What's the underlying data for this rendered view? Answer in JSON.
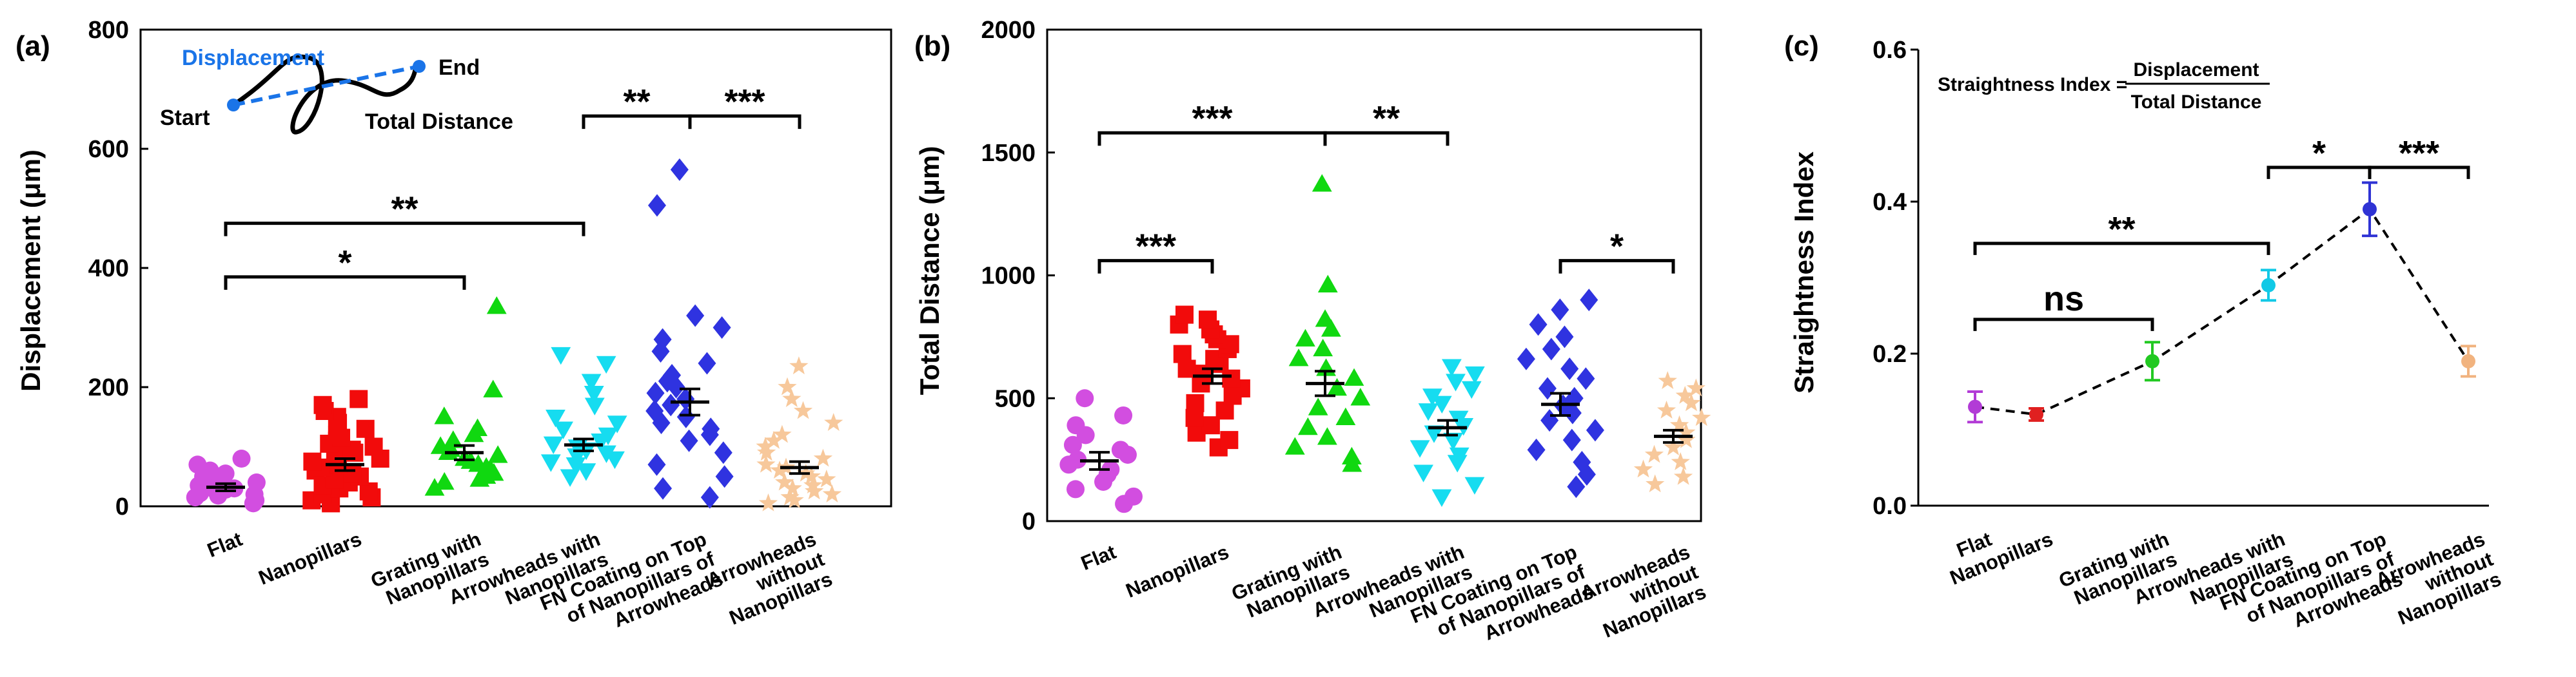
{
  "colors": {
    "Flat": "#d24ee0",
    "Nanopillars": "#f20b0b",
    "Grating with Nanopillars": "#10d810",
    "Arrowheads with Nanopillars": "#16dcf0",
    "FN Coating on Top of Nanopillars of Arrowheads": "#2f33e0",
    "Arrowheads without Nanopillars": "#f7c89b",
    "c_Flat": "#b23bd6",
    "c_Nanopillars": "#e02020",
    "c_Grating with Nanopillars": "#22c922",
    "c_Arrowheads with Nanopillars": "#11c9e6",
    "c_FN Coating on Top of Nanopillars of Arrowheads": "#2f33d4",
    "c_Arrowheads without Nanopillars": "#f1b37f",
    "displacement_line": "#1a74e8"
  },
  "chart_data": [
    {
      "panel": "(a)",
      "type": "scatter",
      "ylabel": "Displacement (μm)",
      "ylim": [
        0,
        800
      ],
      "yticks": [
        0,
        200,
        400,
        600,
        800
      ],
      "categories": [
        {
          "label_lines": [
            "Flat"
          ],
          "marker": "circle",
          "mean": 32,
          "sem": 6,
          "points": [
            5,
            10,
            15,
            18,
            20,
            22,
            25,
            28,
            30,
            32,
            35,
            40,
            45,
            50,
            55,
            60,
            70,
            80
          ]
        },
        {
          "label_lines": [
            "Nanopillars"
          ],
          "marker": "square",
          "mean": 70,
          "sem": 10,
          "points": [
            5,
            8,
            10,
            15,
            20,
            25,
            30,
            35,
            40,
            45,
            50,
            55,
            60,
            65,
            70,
            75,
            80,
            85,
            90,
            95,
            100,
            105,
            110,
            115,
            120,
            130,
            140,
            150,
            160,
            170,
            180
          ]
        },
        {
          "label_lines": [
            "Grating with",
            "Nanopillars"
          ],
          "marker": "triangle-up",
          "mean": 90,
          "sem": 12,
          "points": [
            30,
            40,
            45,
            50,
            55,
            60,
            65,
            70,
            75,
            80,
            85,
            90,
            95,
            100,
            110,
            120,
            130,
            150,
            195,
            335
          ]
        },
        {
          "label_lines": [
            "Arrowheads with",
            "Nanopillars"
          ],
          "marker": "triangle-down",
          "mean": 103,
          "sem": 10,
          "points": [
            50,
            60,
            70,
            75,
            80,
            85,
            90,
            95,
            100,
            105,
            110,
            120,
            130,
            140,
            150,
            170,
            190,
            210,
            240,
            255
          ]
        },
        {
          "label_lines": [
            "FN Coating on Top",
            "of Nanopillars of",
            "Arrowheads"
          ],
          "marker": "diamond",
          "mean": 175,
          "sem": 22,
          "points": [
            15,
            30,
            50,
            70,
            90,
            110,
            120,
            130,
            140,
            150,
            160,
            170,
            180,
            190,
            200,
            210,
            220,
            240,
            260,
            280,
            300,
            320,
            505,
            565
          ]
        },
        {
          "label_lines": [
            "Arrowheads",
            "without",
            "Nanopillars"
          ],
          "marker": "star",
          "mean": 65,
          "sem": 10,
          "points": [
            5,
            10,
            15,
            20,
            25,
            30,
            35,
            40,
            45,
            50,
            55,
            60,
            65,
            70,
            80,
            90,
            100,
            110,
            120,
            140,
            160,
            180,
            200,
            235
          ]
        }
      ],
      "sig_brackets": [
        {
          "from": 0,
          "to": 2,
          "y": 385,
          "label": "*"
        },
        {
          "from": 0,
          "to": 3,
          "y": 475,
          "label": "**"
        },
        {
          "from": 3,
          "to": 4,
          "y": 655,
          "label": "**"
        },
        {
          "from": 4,
          "to": 5,
          "y": 655,
          "label": "***"
        }
      ],
      "inset": {
        "start": "Start",
        "end": "End",
        "displacement": "Displacement",
        "total": "Total Distance"
      }
    },
    {
      "panel": "(b)",
      "type": "scatter",
      "ylabel": "Total Distance (μm)",
      "ylim": [
        0,
        2000
      ],
      "yticks": [
        0,
        500,
        1000,
        1500,
        2000
      ],
      "categories": [
        {
          "label_lines": [
            "Flat"
          ],
          "marker": "circle",
          "mean": 245,
          "sem": 35,
          "points": [
            70,
            100,
            130,
            160,
            190,
            210,
            230,
            250,
            270,
            290,
            310,
            350,
            390,
            430,
            500
          ]
        },
        {
          "label_lines": [
            "Nanopillars"
          ],
          "marker": "square",
          "mean": 590,
          "sem": 30,
          "points": [
            300,
            330,
            360,
            390,
            420,
            450,
            480,
            510,
            540,
            560,
            580,
            600,
            620,
            640,
            660,
            680,
            700,
            720,
            740,
            760,
            780,
            800,
            820,
            840
          ]
        },
        {
          "label_lines": [
            "Grating with",
            "Nanopillars"
          ],
          "marker": "triangle-up",
          "mean": 560,
          "sem": 50,
          "points": [
            230,
            260,
            300,
            340,
            380,
            420,
            460,
            500,
            540,
            580,
            620,
            660,
            700,
            740,
            780,
            820,
            960,
            1370
          ]
        },
        {
          "label_lines": [
            "Arrowheads with",
            "Nanopillars"
          ],
          "marker": "triangle-down",
          "mean": 380,
          "sem": 30,
          "points": [
            100,
            150,
            200,
            240,
            270,
            300,
            330,
            360,
            390,
            420,
            450,
            480,
            510,
            540,
            570,
            600,
            630
          ]
        },
        {
          "label_lines": [
            "FN Coating on Top",
            "of Nanopillars of",
            "Arrowheads"
          ],
          "marker": "diamond",
          "mean": 475,
          "sem": 45,
          "points": [
            140,
            190,
            240,
            290,
            330,
            370,
            410,
            440,
            470,
            500,
            540,
            580,
            620,
            660,
            700,
            750,
            800,
            860,
            900
          ]
        },
        {
          "label_lines": [
            "Arrowheads",
            "without",
            "Nanopillars"
          ],
          "marker": "star",
          "mean": 345,
          "sem": 25,
          "points": [
            150,
            180,
            210,
            240,
            270,
            300,
            330,
            360,
            390,
            420,
            450,
            480,
            510,
            540,
            570
          ]
        }
      ],
      "sig_brackets": [
        {
          "from": 0,
          "to": 1,
          "y": 1060,
          "label": "***"
        },
        {
          "from": 0,
          "to": 2,
          "y": 1580,
          "label": "***"
        },
        {
          "from": 2,
          "to": 3,
          "y": 1580,
          "label": "**"
        },
        {
          "from": 4,
          "to": 5,
          "y": 1060,
          "label": "*"
        }
      ]
    },
    {
      "panel": "(c)",
      "type": "line",
      "ylabel": "Straightness Index",
      "ylim": [
        0,
        0.6
      ],
      "yticks": [
        "0.0",
        "0.2",
        "0.4",
        "0.6"
      ],
      "categories": [
        {
          "label_lines": [
            "Flat"
          ],
          "mean": 0.13,
          "err": 0.02
        },
        {
          "label_lines": [
            "Nanopillars"
          ],
          "mean": 0.12,
          "err": 0.008
        },
        {
          "label_lines": [
            "Grating with",
            "Nanopillars"
          ],
          "mean": 0.19,
          "err": 0.025
        },
        {
          "label_lines": [
            "Arrowheads with",
            "Nanopillars"
          ],
          "mean": 0.29,
          "err": 0.02
        },
        {
          "label_lines": [
            "FN Coating on Top",
            "of Nanopillars of",
            "Arrowheads"
          ],
          "mean": 0.39,
          "err": 0.035
        },
        {
          "label_lines": [
            "Arrowheads",
            "without",
            "Nanopillars"
          ],
          "mean": 0.19,
          "err": 0.02
        }
      ],
      "sig_brackets": [
        {
          "from": 0,
          "to": 2,
          "y": 0.245,
          "label": "ns"
        },
        {
          "from": 0,
          "to": 3,
          "y": 0.345,
          "label": "**"
        },
        {
          "from": 3,
          "to": 4,
          "y": 0.445,
          "label": "*"
        },
        {
          "from": 4,
          "to": 5,
          "y": 0.445,
          "label": "***"
        }
      ],
      "formula": {
        "lhs": "Straightness Index =",
        "numerator": "Displacement",
        "denominator": "Total Distance"
      }
    }
  ]
}
